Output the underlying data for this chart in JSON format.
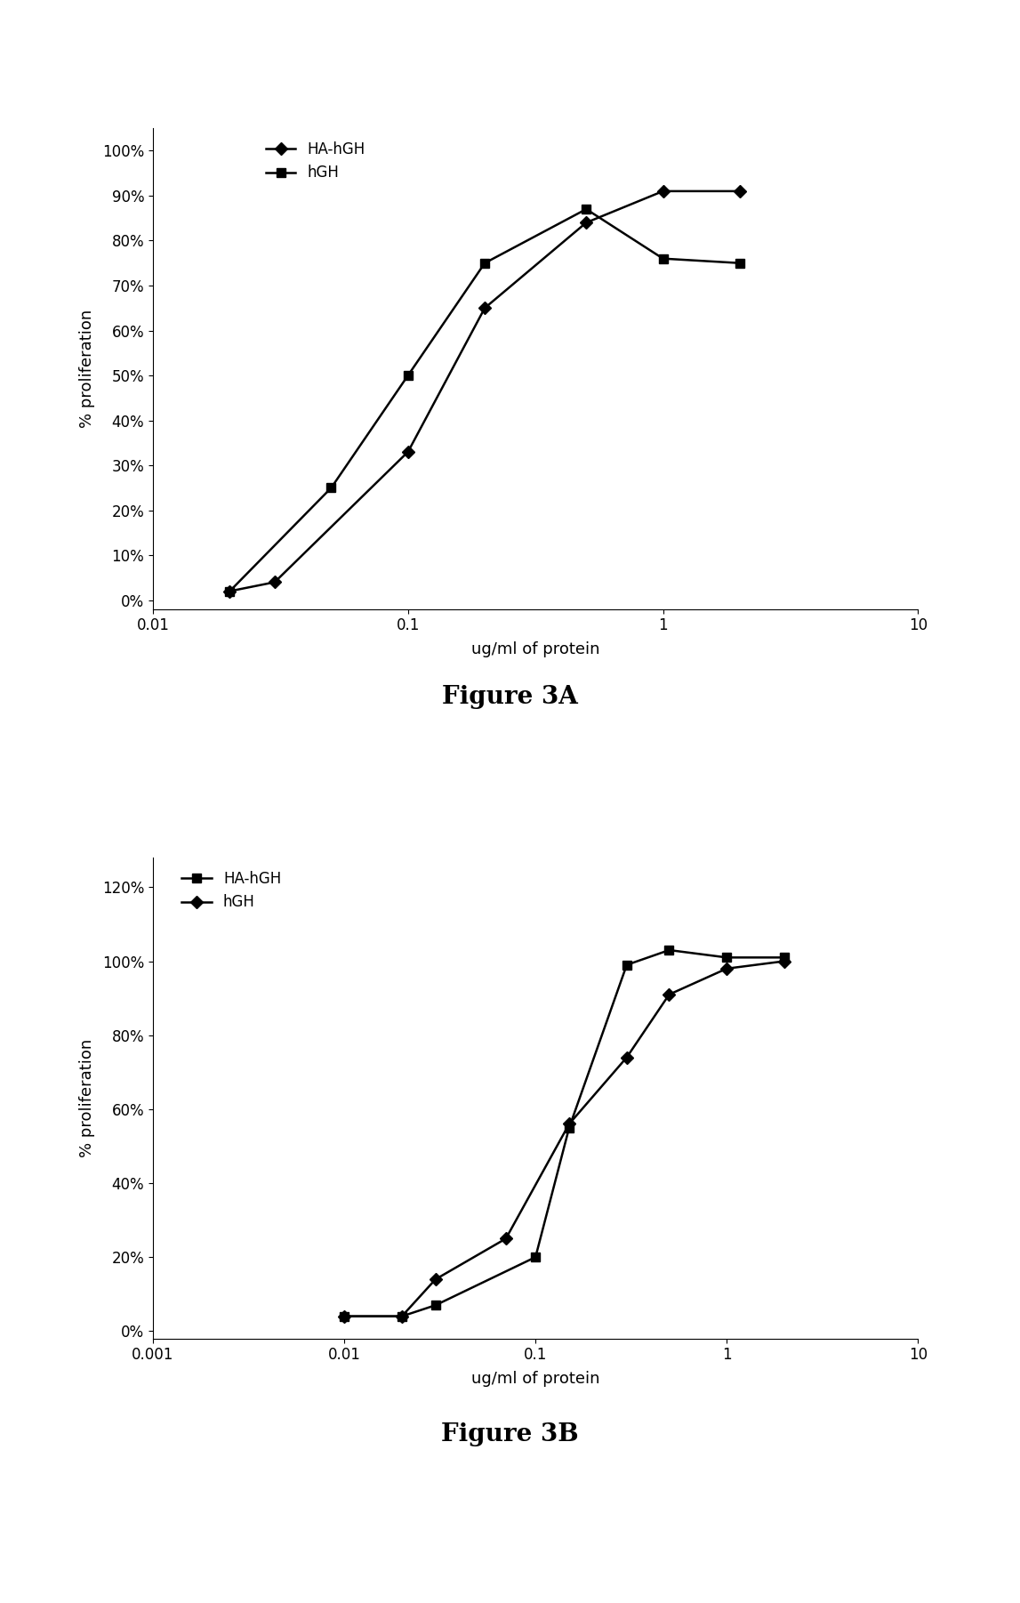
{
  "fig3a": {
    "ha_hgh_x": [
      0.02,
      0.03,
      0.1,
      0.2,
      0.5,
      1.0,
      2.0
    ],
    "ha_hgh_y": [
      0.02,
      0.04,
      0.33,
      0.65,
      0.84,
      0.91,
      0.91
    ],
    "hgh_x": [
      0.02,
      0.05,
      0.1,
      0.2,
      0.5,
      1.0,
      2.0
    ],
    "hgh_y": [
      0.02,
      0.25,
      0.5,
      0.75,
      0.87,
      0.76,
      0.75
    ],
    "xlabel": "ug/ml of protein",
    "ylabel": "% proliferation",
    "legend": [
      "HA-hGH",
      "hGH"
    ],
    "caption": "Figure 3A",
    "xlim_log": [
      -2,
      1
    ],
    "ylim": [
      -0.02,
      1.05
    ],
    "yticks": [
      0.0,
      0.1,
      0.2,
      0.3,
      0.4,
      0.5,
      0.6,
      0.7,
      0.8,
      0.9,
      1.0
    ],
    "ytick_labels": [
      "0%",
      "10%",
      "20%",
      "30%",
      "40%",
      "50%",
      "60%",
      "70%",
      "80%",
      "90%",
      "100%"
    ],
    "xticks": [
      0.01,
      0.1,
      1,
      10
    ],
    "xtick_labels": [
      "0.01",
      "0.1",
      "1",
      "10"
    ]
  },
  "fig3b": {
    "ha_hgh_x": [
      0.01,
      0.02,
      0.03,
      0.1,
      0.15,
      0.3,
      0.5,
      1.0,
      2.0
    ],
    "ha_hgh_y": [
      0.04,
      0.04,
      0.07,
      0.2,
      0.55,
      0.99,
      1.03,
      1.01,
      1.01
    ],
    "hgh_x": [
      0.01,
      0.02,
      0.03,
      0.07,
      0.15,
      0.3,
      0.5,
      1.0,
      2.0
    ],
    "hgh_y": [
      0.04,
      0.04,
      0.14,
      0.25,
      0.56,
      0.74,
      0.91,
      0.98,
      1.0
    ],
    "xlabel": "ug/ml of protein",
    "ylabel": "% proliferation",
    "legend": [
      "HA-hGH",
      "hGH"
    ],
    "caption": "Figure 3B",
    "ylim": [
      -0.02,
      1.28
    ],
    "yticks": [
      0.0,
      0.2,
      0.4,
      0.6,
      0.8,
      1.0,
      1.2
    ],
    "ytick_labels": [
      "0%",
      "20%",
      "40%",
      "60%",
      "80%",
      "100%",
      "120%"
    ],
    "xticks": [
      0.001,
      0.01,
      0.1,
      1,
      10
    ],
    "xtick_labels": [
      "0.001",
      "0.01",
      "0.1",
      "1",
      "10"
    ]
  },
  "fig_width": 11.47,
  "fig_height": 18.02,
  "dpi": 100
}
